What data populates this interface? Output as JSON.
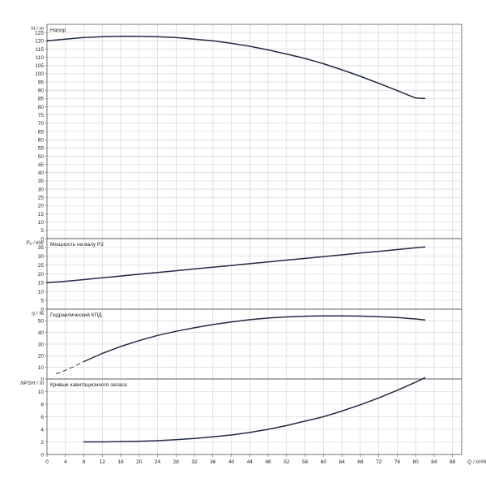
{
  "chart_data": [
    {
      "type": "line",
      "panel_label": "Напор",
      "ylabel": "H / m",
      "ylim": [
        0,
        130
      ],
      "ytick_step": 5,
      "grid": true,
      "series": [
        {
          "name": "Напор",
          "x": [
            0,
            4,
            8,
            12,
            16,
            20,
            24,
            28,
            32,
            36,
            40,
            44,
            48,
            52,
            56,
            60,
            64,
            68,
            72,
            76,
            80,
            82
          ],
          "y": [
            120.0,
            121.0,
            122.0,
            122.5,
            122.8,
            122.7,
            122.5,
            122.0,
            121.0,
            120.0,
            118.5,
            116.7,
            114.5,
            112.0,
            109.3,
            106.1,
            102.4,
            98.5,
            94.2,
            89.8,
            85.3,
            85.0
          ],
          "color": "#1f2a44"
        }
      ]
    },
    {
      "type": "line",
      "panel_label": "Мощность на валу P2",
      "ylabel": "P₂ / kW",
      "ylim": [
        0,
        40
      ],
      "ytick_step": 5,
      "ytick_max": 35,
      "grid": true,
      "series": [
        {
          "name": "Мощность на валу P2",
          "x": [
            0,
            4,
            8,
            12,
            16,
            20,
            24,
            28,
            32,
            36,
            40,
            44,
            48,
            52,
            56,
            60,
            64,
            68,
            72,
            76,
            80,
            82
          ],
          "y": [
            15.0,
            15.8,
            16.8,
            17.8,
            18.8,
            19.8,
            20.8,
            21.8,
            22.8,
            23.8,
            24.8,
            25.8,
            26.8,
            27.8,
            28.8,
            29.8,
            30.8,
            31.8,
            32.8,
            33.8,
            34.8,
            35.3
          ],
          "color": "#1f2a44"
        }
      ]
    },
    {
      "type": "line",
      "panel_label": "Гидравлический КПД",
      "ylabel": "η / %",
      "ylim": [
        0,
        60
      ],
      "ytick_step": 10,
      "ytick_max": 50,
      "grid": true,
      "series": [
        {
          "name": "Гидравлический КПД",
          "x": [
            8,
            12,
            16,
            20,
            24,
            28,
            32,
            36,
            40,
            44,
            48,
            52,
            56,
            60,
            64,
            68,
            72,
            76,
            80,
            82
          ],
          "y": [
            15.0,
            22.0,
            28.0,
            33.0,
            37.5,
            41.0,
            44.0,
            46.8,
            49.0,
            51.0,
            52.4,
            53.4,
            54.0,
            54.3,
            54.3,
            54.1,
            53.6,
            52.8,
            51.6,
            50.8
          ],
          "color": "#1f2a44"
        },
        {
          "x": [
            2,
            4,
            6,
            8
          ],
          "y": [
            4.5,
            7.5,
            11.0,
            15.0
          ],
          "dashed": true,
          "color": "#1f2a44"
        }
      ]
    },
    {
      "type": "line",
      "panel_label": "Кривые кавитационного запаса",
      "ylabel": "NPSH / m",
      "xlabel": "Q / m³/h",
      "ylim": [
        0,
        12
      ],
      "ytick_step": 2,
      "ytick_max": 10,
      "grid": true,
      "xlim": [
        0,
        90
      ],
      "xtick_step": 4,
      "xtick_max": 88,
      "series": [
        {
          "name": "Кривые кавитационного запаса",
          "x": [
            8,
            12,
            16,
            20,
            24,
            28,
            32,
            36,
            40,
            44,
            48,
            52,
            56,
            60,
            64,
            68,
            72,
            76,
            80,
            82
          ],
          "y": [
            2.0,
            2.0,
            2.05,
            2.1,
            2.2,
            2.35,
            2.55,
            2.8,
            3.1,
            3.5,
            4.0,
            4.6,
            5.3,
            6.0,
            6.9,
            7.9,
            9.0,
            10.2,
            11.5,
            12.2
          ],
          "color": "#1f2a44"
        }
      ]
    }
  ]
}
